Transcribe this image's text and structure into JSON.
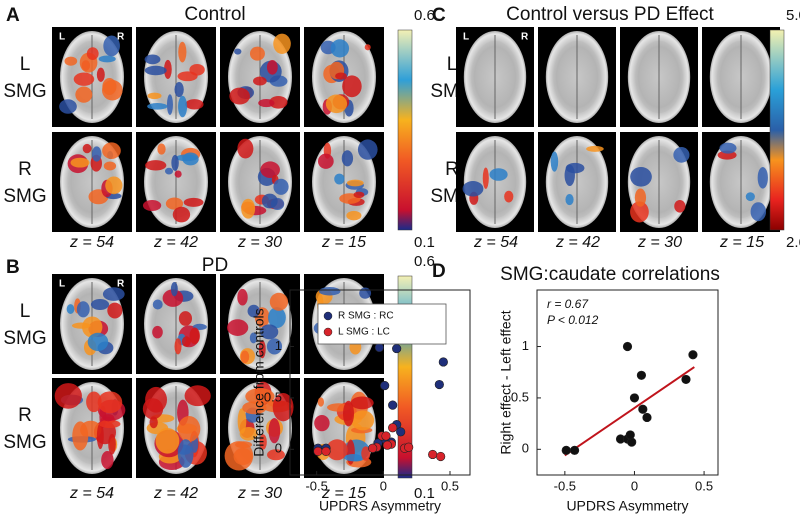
{
  "panels": [
    {
      "label": "A",
      "title": "Control",
      "rows": [
        [
          "L",
          "SMG"
        ],
        [
          "R",
          "SMG"
        ]
      ],
      "z": [
        "z = 54",
        "z = 42",
        "z = 30",
        "z = 15"
      ],
      "image_labels": [
        "L",
        "R"
      ],
      "colorbar": {
        "top": "0.6",
        "bottom": "0.1"
      }
    },
    {
      "label": "B",
      "title": "PD",
      "rows": [
        [
          "L",
          "SMG"
        ],
        [
          "R",
          "SMG"
        ]
      ],
      "z": [
        "z = 54",
        "z = 42",
        "z = 30",
        "z = 15"
      ],
      "image_labels": [
        "L",
        "R"
      ],
      "colorbar": {
        "top": "0.6",
        "bottom": "0.1"
      }
    },
    {
      "label": "C",
      "title": "Control versus PD Effect",
      "rows": [
        [
          "L",
          "SMG"
        ],
        [
          "R",
          "SMG"
        ]
      ],
      "z": [
        "z = 54",
        "z = 42",
        "z = 30",
        "z = 15"
      ],
      "image_labels": [
        "L",
        "R"
      ],
      "colorbar": {
        "top": "5.0",
        "bottom": "2.6"
      }
    }
  ],
  "panel_d": {
    "label": "D",
    "title": "SMG:caudate correlations"
  },
  "chart_data": [
    {
      "type": "scatter",
      "xlabel": "UPDRS Asymmetry",
      "ylabel": "Difference from controls",
      "xlim": [
        -0.7,
        0.65
      ],
      "ylim": [
        -0.25,
        1.55
      ],
      "xticks": [
        -0.5,
        0,
        0.5
      ],
      "yticks": [
        0,
        0.5,
        1
      ],
      "legend": "upper left",
      "series": [
        {
          "name": "R SMG : RC",
          "color": "#1f2f7a",
          "x": [
            -0.49,
            -0.43,
            -0.03,
            0.01,
            0.1,
            0.01,
            -0.04,
            0.07,
            0.1,
            0.13,
            0.06,
            0.42,
            0.45
          ],
          "values": [
            0.01,
            0.01,
            0.99,
            0.62,
            0.98,
            0.1,
            0.06,
            0.43,
            0.24,
            0.17,
            0.07,
            0.63,
            0.85
          ]
        },
        {
          "name": "L SMG : LC",
          "color": "#d8232a",
          "x": [
            -0.49,
            -0.43,
            -0.05,
            -0.01,
            0.02,
            0.07,
            0.06,
            0.16,
            0.19,
            0.37,
            0.43,
            -0.08,
            0.03
          ],
          "values": [
            -0.02,
            -0.02,
            0.02,
            0.13,
            0.13,
            0.21,
            0.05,
            0.01,
            0.02,
            -0.05,
            -0.07,
            0.01,
            0.04
          ]
        }
      ]
    },
    {
      "type": "scatter",
      "xlabel": "UPDRS Asymmetry",
      "ylabel": "Right effect - Left effect",
      "xlim": [
        -0.7,
        0.6
      ],
      "ylim": [
        -0.25,
        1.55
      ],
      "xticks": [
        -0.5,
        0,
        0.5
      ],
      "yticks": [
        0,
        0.5,
        1
      ],
      "annotations": [
        "r = 0.67",
        "P < 0.012"
      ],
      "series": [
        {
          "color": "#111111",
          "x": [
            -0.49,
            -0.43,
            -0.05,
            -0.1,
            -0.05,
            -0.02,
            0.0,
            0.05,
            0.06,
            0.09,
            -0.03,
            0.37,
            0.42
          ],
          "values": [
            -0.01,
            -0.01,
            1.0,
            0.1,
            0.1,
            0.07,
            0.5,
            0.72,
            0.39,
            0.31,
            0.14,
            0.68,
            0.92
          ]
        }
      ],
      "fit": {
        "color": "#c0141c",
        "x": [
          -0.5,
          0.43
        ],
        "values": [
          -0.06,
          0.8
        ]
      }
    }
  ]
}
